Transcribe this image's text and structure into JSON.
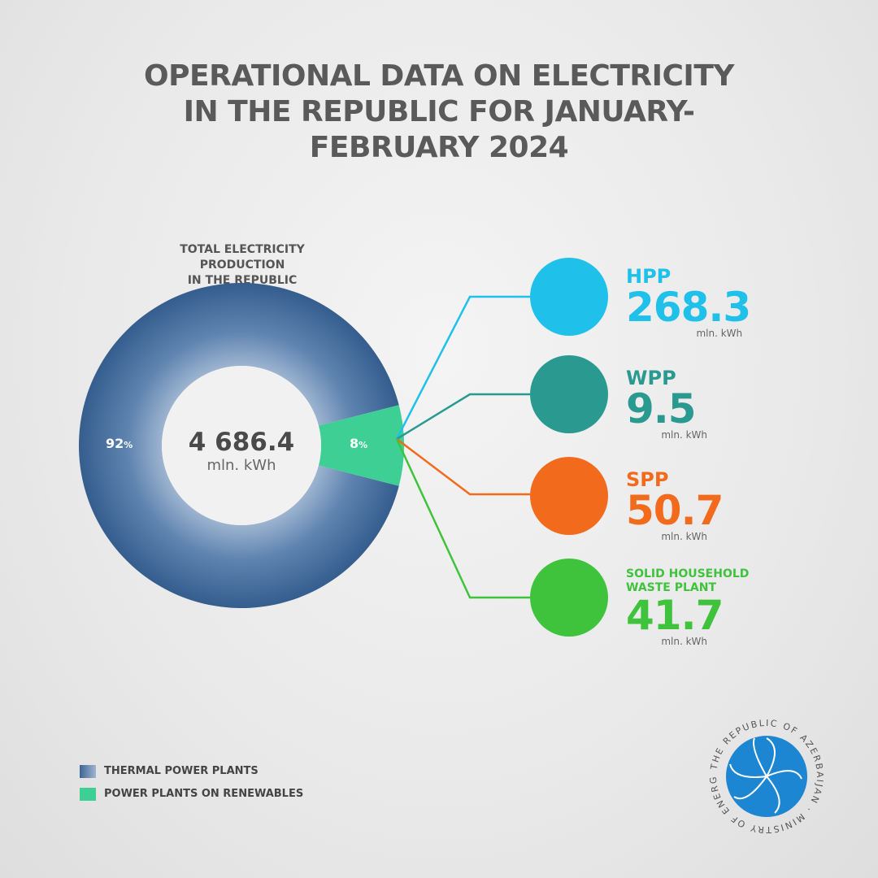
{
  "title_lines": [
    "OPERATIONAL DATA ON ELECTRICITY",
    "IN THE REPUBLIC FOR JANUARY-",
    "FEBRUARY 2024"
  ],
  "subtitle_lines": [
    "TOTAL ELECTRICITY PRODUCTION",
    "IN THE REPUBLIC"
  ],
  "center": {
    "value": "4 686.4",
    "unit": "mln. kWh"
  },
  "colors": {
    "thermal": "#3d6596",
    "renewables": "#3ecf95",
    "hpp": "#1fc0ea",
    "wpp": "#2a9a91",
    "spp": "#f26b1d",
    "waste": "#3fc33c"
  },
  "chart_data": {
    "type": "pie",
    "title": "TOTAL ELECTRICITY PRODUCTION IN THE REPUBLIC",
    "total": 4686.4,
    "unit": "mln. kWh",
    "slices": [
      {
        "name": "THERMAL POWER PLANTS",
        "percent": 92,
        "label": "92",
        "suffix": "%"
      },
      {
        "name": "POWER PLANTS ON RENEWABLES",
        "percent": 8,
        "label": "8",
        "suffix": "%"
      }
    ],
    "breakdown": [
      {
        "name": "HPP",
        "value": "268.3",
        "unit": "mln. kWh",
        "icon": "hydro-plant-icon"
      },
      {
        "name": "WPP",
        "value": "9.5",
        "unit": "mln. kWh",
        "icon": "wind-plant-icon"
      },
      {
        "name": "SPP",
        "value": "50.7",
        "unit": "mln. kWh",
        "icon": "solar-plant-icon"
      },
      {
        "name": "SOLID HOUSEHOLD WASTE PLANT",
        "value": "41.7",
        "unit": "mln. kWh",
        "icon": "waste-plant-icon"
      }
    ],
    "legend_position": "bottom-left"
  },
  "legend": [
    "THERMAL POWER PLANTS",
    "POWER PLANTS ON RENEWABLES"
  ],
  "seal_text": "THE REPUBLIC OF AZERBAIJAN MINISTRY OF ENERGY"
}
